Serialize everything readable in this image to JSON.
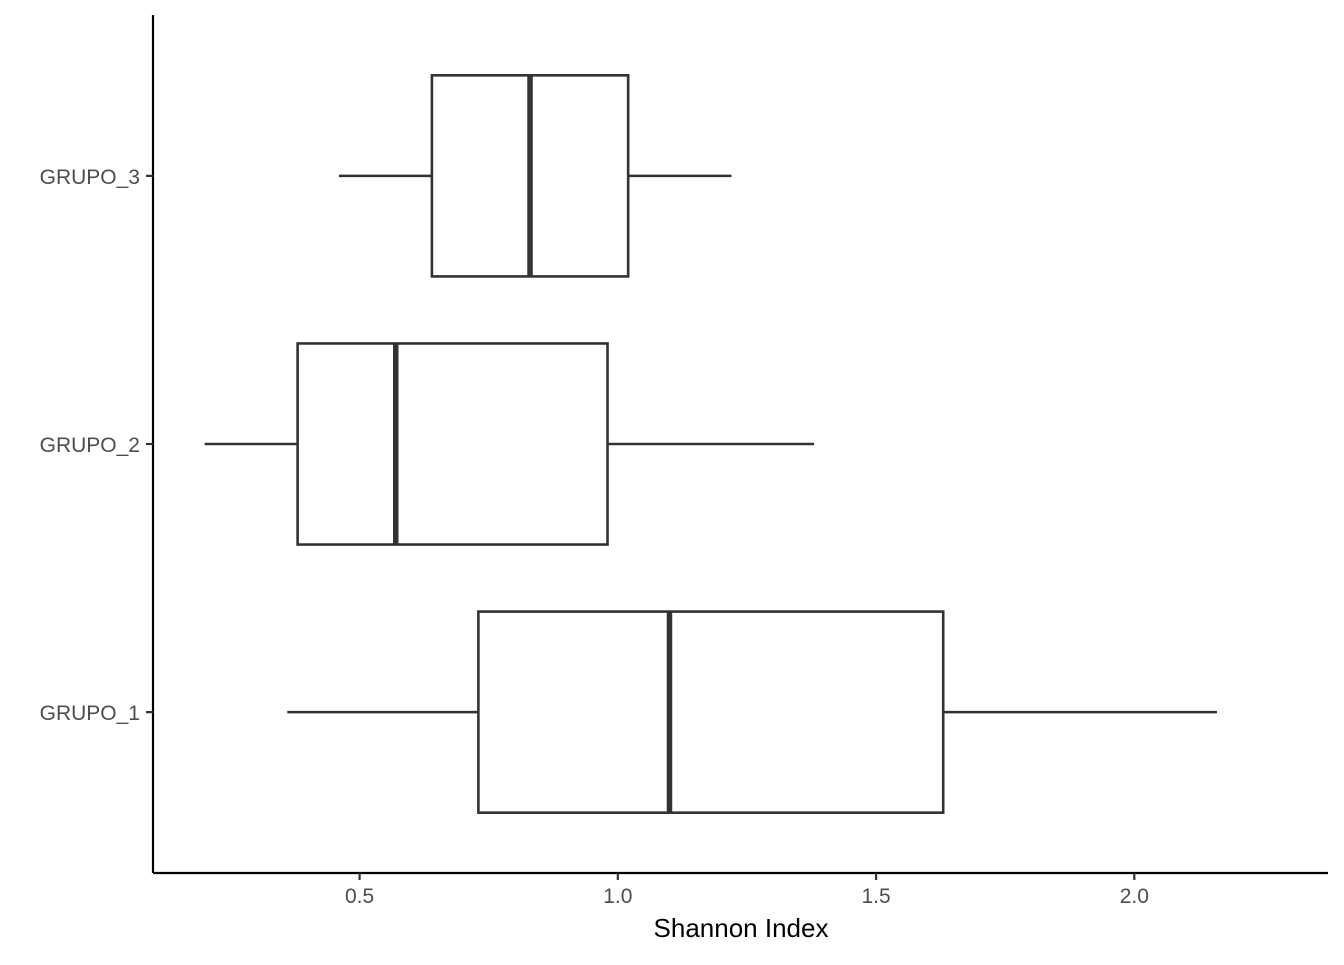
{
  "chart_data": {
    "type": "boxplot",
    "orientation": "horizontal",
    "xlabel": "Shannon Index",
    "ylabel": "",
    "title": "",
    "xlim": [
      0.1,
      2.375
    ],
    "x_ticks": [
      0.5,
      1.0,
      1.5,
      2.0
    ],
    "x_tick_labels": [
      "0.5",
      "1.0",
      "1.5",
      "2.0"
    ],
    "categories": [
      "GRUPO_1",
      "GRUPO_2",
      "GRUPO_3"
    ],
    "series": [
      {
        "category": "GRUPO_1",
        "min": 0.36,
        "q1": 0.73,
        "median": 1.1,
        "q3": 1.63,
        "max": 2.16
      },
      {
        "category": "GRUPO_2",
        "min": 0.2,
        "q1": 0.38,
        "median": 0.57,
        "q3": 0.98,
        "max": 1.38
      },
      {
        "category": "GRUPO_3",
        "min": 0.46,
        "q1": 0.64,
        "median": 0.83,
        "q3": 1.02,
        "max": 1.22
      }
    ],
    "grid": false,
    "legend": "none",
    "colors": {
      "stroke": "#333333",
      "fill": "#ffffff",
      "axis": "#000000",
      "tick_text": "#4d4d4d"
    }
  }
}
